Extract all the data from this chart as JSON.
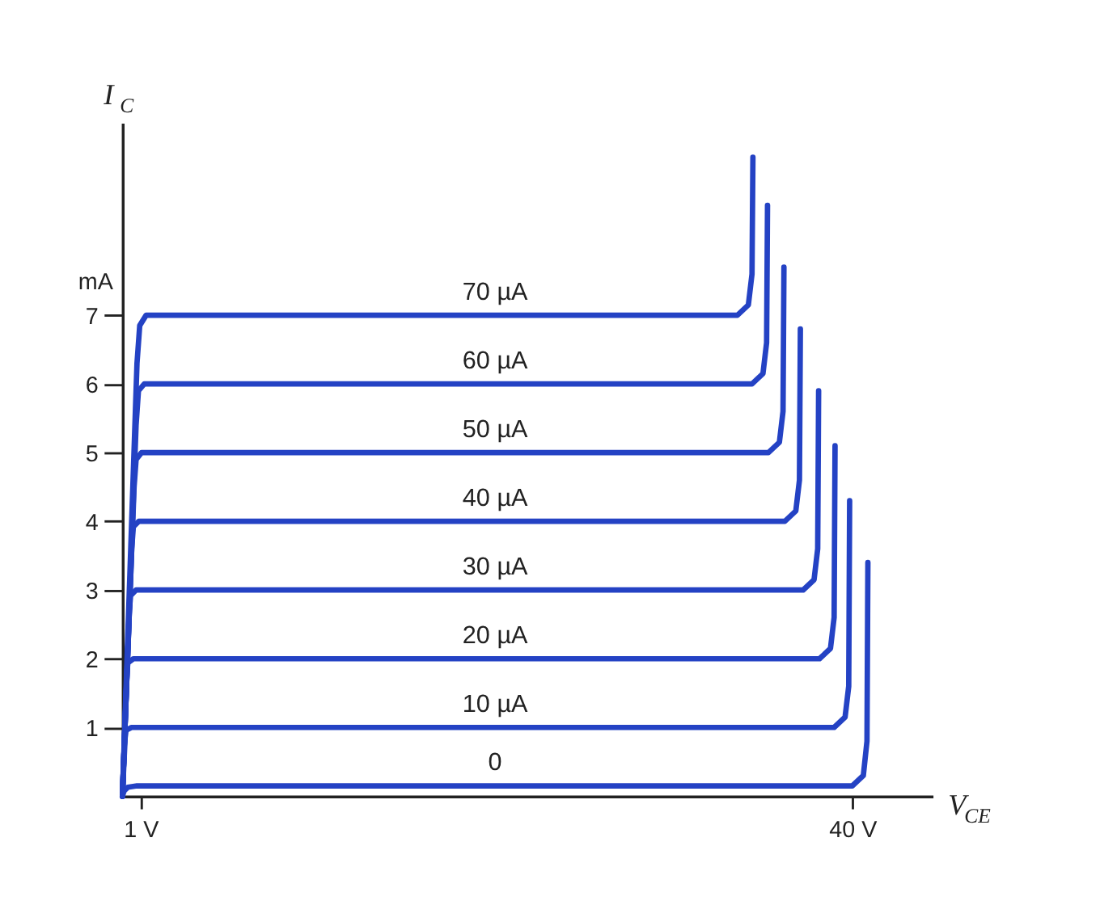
{
  "chart_data": {
    "type": "line",
    "xlabel": "V$_{CE}$",
    "ylabel": "I$_{C}$",
    "xlim": [
      0,
      44.4
    ],
    "xticks": [
      {
        "value": 1,
        "label": "1 V"
      },
      {
        "value": 40,
        "label": "40 V"
      }
    ],
    "ylim": [
      0,
      9.8
    ],
    "yticks": [
      1,
      2,
      3,
      4,
      5,
      6,
      7
    ],
    "annotations": [
      "mA"
    ],
    "grid": false,
    "marker": "none",
    "line_style": "solid",
    "series": [
      {
        "name": "70 µA",
        "color": "#2442c4",
        "x": [
          0,
          0.8,
          0.95,
          1.3,
          33.7,
          34.3,
          34.5,
          34.55
        ],
        "values": [
          0,
          6.3,
          6.85,
          7,
          7,
          7.15,
          7.6,
          9.3
        ]
      },
      {
        "name": "60 µA",
        "color": "#2442c4",
        "x": [
          0,
          0.75,
          0.88,
          1.2,
          34.5,
          35.1,
          35.3,
          35.35
        ],
        "values": [
          0,
          5.4,
          5.9,
          6,
          6,
          6.15,
          6.6,
          8.6
        ]
      },
      {
        "name": "50 µA",
        "color": "#2442c4",
        "x": [
          0,
          0.64,
          0.75,
          1.05,
          35.4,
          36.0,
          36.2,
          36.25
        ],
        "values": [
          0,
          4.5,
          4.9,
          5,
          5,
          5.15,
          5.6,
          7.7
        ]
      },
      {
        "name": "40 µA",
        "color": "#2442c4",
        "x": [
          0,
          0.51,
          0.6,
          0.9,
          36.3,
          36.9,
          37.1,
          37.15
        ],
        "values": [
          0,
          3.6,
          3.92,
          4,
          4,
          4.15,
          4.6,
          6.8
        ]
      },
      {
        "name": "30 µA",
        "color": "#2442c4",
        "x": [
          0,
          0.38,
          0.45,
          0.75,
          37.3,
          37.9,
          38.1,
          38.15
        ],
        "values": [
          0,
          2.7,
          2.92,
          3,
          3,
          3.15,
          3.6,
          5.9
        ]
      },
      {
        "name": "20 µA",
        "color": "#2442c4",
        "x": [
          0,
          0.25,
          0.3,
          0.6,
          38.2,
          38.8,
          39.0,
          39.05
        ],
        "values": [
          0,
          1.8,
          1.94,
          2,
          2,
          2.15,
          2.6,
          5.1
        ]
      },
      {
        "name": "10 µA",
        "color": "#2442c4",
        "x": [
          0,
          0.15,
          0.2,
          0.5,
          39.0,
          39.6,
          39.8,
          39.85
        ],
        "values": [
          0,
          0.85,
          0.96,
          1,
          1,
          1.15,
          1.6,
          4.3
        ]
      },
      {
        "name": "0",
        "color": "#2442c4",
        "x": [
          0,
          0.1,
          0.3,
          0.8,
          40.0,
          40.6,
          40.8,
          40.85
        ],
        "values": [
          0,
          0.08,
          0.13,
          0.15,
          0.15,
          0.3,
          0.8,
          3.4
        ]
      }
    ]
  }
}
